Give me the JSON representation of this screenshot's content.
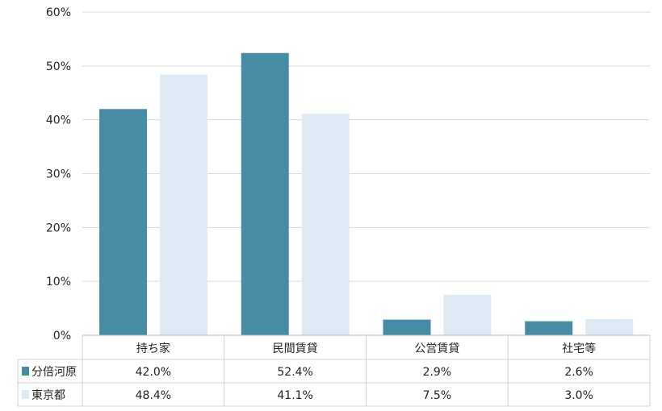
{
  "chart_data": {
    "type": "bar",
    "categories": [
      "持ち家",
      "民間賃貸",
      "公営賃貸",
      "社宅等"
    ],
    "series": [
      {
        "name": "分倍河原",
        "values": [
          42.0,
          52.4,
          2.9,
          2.6
        ],
        "labels": [
          "42.0%",
          "52.4%",
          "2.9%",
          "2.6%"
        ],
        "color": "#468ca5"
      },
      {
        "name": "東京都",
        "values": [
          48.4,
          41.1,
          7.5,
          3.0
        ],
        "labels": [
          "48.4%",
          "41.1%",
          "7.5%",
          "3.0%"
        ],
        "color": "#dde9f5"
      }
    ],
    "ylim": [
      0,
      60
    ],
    "yticks": [
      "0%",
      "10%",
      "20%",
      "30%",
      "40%",
      "50%",
      "60%"
    ],
    "grid": true,
    "legend": "data-table-left",
    "gridColor": "#d9d9d9"
  }
}
